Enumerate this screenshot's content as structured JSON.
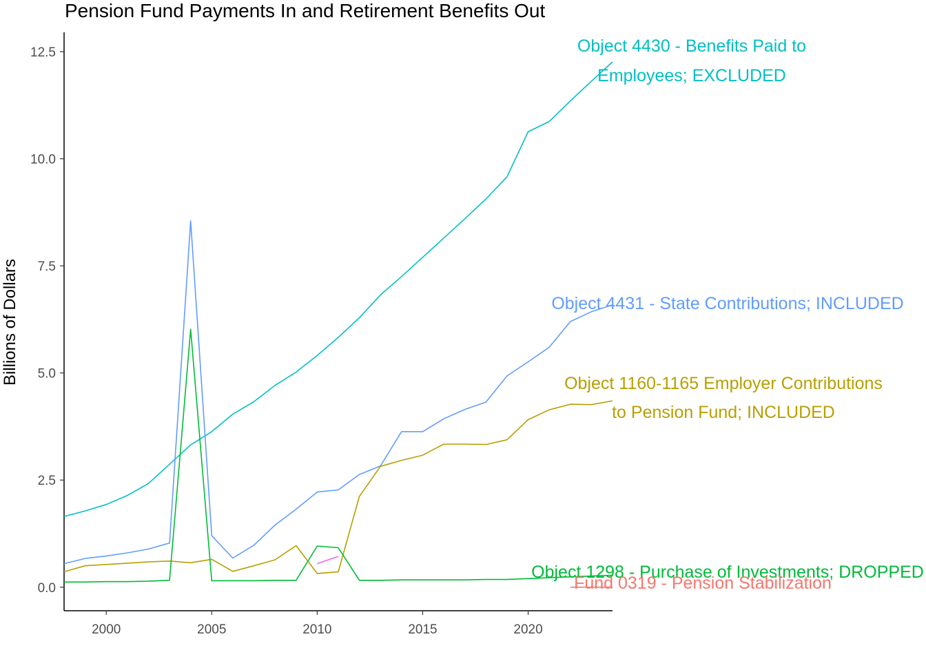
{
  "chart_data": {
    "type": "line",
    "title": "Pension Fund Payments In and Retirement Benefits Out",
    "xlabel": "",
    "ylabel": "Billions of Dollars",
    "xlim": [
      1998,
      2024
    ],
    "ylim": [
      -0.55,
      12.95
    ],
    "xticks": [
      2000,
      2005,
      2010,
      2015,
      2020
    ],
    "yticks": [
      0.0,
      2.5,
      5.0,
      7.5,
      10.0,
      12.5
    ],
    "ytick_labels": [
      "0.0",
      "2.5",
      "5.0",
      "7.5",
      "10.0",
      "12.5"
    ],
    "grid": false,
    "legend": "none (direct labels)",
    "series": [
      {
        "name": "Object 4430 - Benefits Paid to Employees; EXCLUDED",
        "label_lines": [
          "Object 4430 - Benefits Paid to",
          "Employees; EXCLUDED"
        ],
        "color": "#00BFC4",
        "x": [
          1998,
          1999,
          2000,
          2001,
          2002,
          2003,
          2004,
          2005,
          2006,
          2007,
          2008,
          2009,
          2010,
          2011,
          2012,
          2013,
          2014,
          2015,
          2016,
          2017,
          2018,
          2019,
          2020,
          2021,
          2022,
          2023,
          2024
        ],
        "y": [
          1.65,
          1.78,
          1.93,
          2.14,
          2.42,
          2.87,
          3.32,
          3.63,
          4.04,
          4.33,
          4.71,
          5.02,
          5.41,
          5.83,
          6.29,
          6.82,
          7.25,
          7.7,
          8.15,
          8.6,
          9.06,
          9.58,
          10.63,
          10.87,
          11.35,
          11.81,
          12.26
        ]
      },
      {
        "name": "Object 4431 - State Contributions; INCLUDED",
        "label_lines": [
          "Object 4431 - State Contributions; INCLUDED"
        ],
        "color": "#619CFF",
        "x": [
          1998,
          1999,
          2000,
          2001,
          2002,
          2003,
          2004,
          2005,
          2006,
          2007,
          2008,
          2009,
          2010,
          2011,
          2012,
          2013,
          2014,
          2015,
          2016,
          2017,
          2018,
          2019,
          2020,
          2021,
          2022,
          2023,
          2024
        ],
        "y": [
          0.55,
          0.67,
          0.73,
          0.8,
          0.89,
          1.03,
          8.55,
          1.2,
          0.68,
          0.98,
          1.45,
          1.82,
          2.22,
          2.27,
          2.63,
          2.83,
          3.63,
          3.63,
          3.93,
          4.15,
          4.32,
          4.93,
          5.26,
          5.6,
          6.2,
          6.43,
          6.59
        ]
      },
      {
        "name": "Object 1160-1165 Employer Contributions to Pension Fund; INCLUDED",
        "label_lines": [
          "Object 1160-1165 Employer Contributions",
          "to Pension Fund; INCLUDED"
        ],
        "color": "#B79F00",
        "x": [
          1998,
          1999,
          2000,
          2001,
          2002,
          2003,
          2004,
          2005,
          2006,
          2007,
          2008,
          2009,
          2010,
          2011,
          2012,
          2013,
          2014,
          2015,
          2016,
          2017,
          2018,
          2019,
          2020,
          2021,
          2022,
          2023,
          2024
        ],
        "y": [
          0.36,
          0.5,
          0.53,
          0.56,
          0.59,
          0.61,
          0.57,
          0.65,
          0.37,
          0.5,
          0.64,
          0.97,
          0.32,
          0.36,
          2.12,
          2.82,
          2.96,
          3.08,
          3.34,
          3.34,
          3.33,
          3.44,
          3.91,
          4.14,
          4.27,
          4.26,
          4.35
        ]
      },
      {
        "name": "Object 1298 - Purchase of Investments; DROPPED",
        "label_lines": [
          "Object 1298 - Purchase of Investments; DROPPED"
        ],
        "color": "#00BA38",
        "x": [
          1998,
          1999,
          2000,
          2001,
          2002,
          2003,
          2004,
          2005,
          2006,
          2007,
          2008,
          2009,
          2010,
          2011,
          2012,
          2013,
          2014,
          2015,
          2016,
          2017,
          2018,
          2019,
          2020,
          2021,
          2022,
          2023,
          2024
        ],
        "y": [
          0.12,
          0.12,
          0.13,
          0.13,
          0.14,
          0.16,
          6.02,
          0.15,
          0.15,
          0.15,
          0.16,
          0.16,
          0.96,
          0.92,
          0.16,
          0.16,
          0.17,
          0.17,
          0.17,
          0.17,
          0.18,
          0.18,
          0.2,
          0.22,
          0.24,
          0.26,
          0.28
        ]
      },
      {
        "name": "Fund 0319 - Pension Stabilization",
        "label_lines": [
          "Fund 0319 - Pension Stabilization"
        ],
        "color": "#F8766D",
        "x": [
          2022,
          2023,
          2024
        ],
        "y": [
          0.0,
          0.0,
          0.0
        ]
      },
      {
        "name": "",
        "label_lines": [],
        "color": "#F564E3",
        "x": [
          2010,
          2011
        ],
        "y": [
          0.55,
          0.72
        ]
      }
    ]
  }
}
